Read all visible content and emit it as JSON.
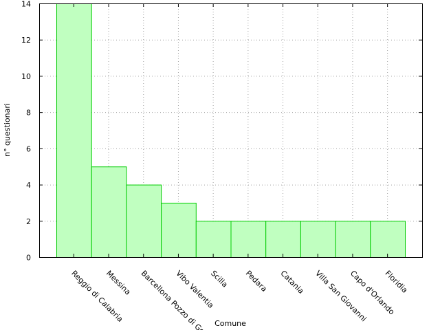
{
  "chart_data": {
    "type": "bar",
    "categories": [
      "Reggio di Calabria",
      "Messina",
      "Barcellona Pozzo di Gotto",
      "Vibo Valentia",
      "Scilla",
      "Pedara",
      "Catania",
      "Villa San Giovanni",
      "Capo d'Orlando",
      "Floridia"
    ],
    "values": [
      14,
      5,
      4,
      3,
      2,
      2,
      2,
      2,
      2,
      2
    ],
    "xlabel": "Comune",
    "ylabel": "n° questionari",
    "ylim": [
      0,
      14
    ],
    "yticks": [
      0,
      2,
      4,
      6,
      8,
      10,
      12,
      14
    ],
    "grid": true,
    "bar_fill": "#c0ffc0",
    "bar_stroke": "#00cc00",
    "grid_color": "#a0a0a0"
  }
}
